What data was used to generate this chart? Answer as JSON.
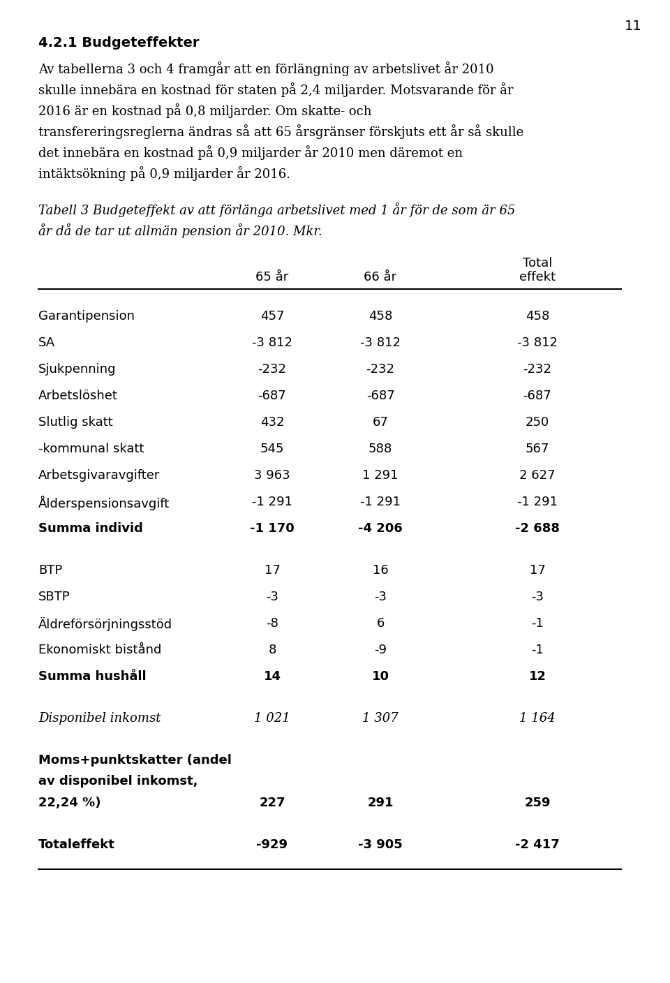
{
  "page_number": "11",
  "heading": "4.2.1 Budgeteffekter",
  "body_text": "Av tabellerna 3 och 4 framgår att en förlängning av arbetslivet år 2010\nskulle innebära en kostnad för staten på 2,4 miljarder. Motsvarande för år\n2016 är en kostnad på 0,8 miljarder. Om skatte- och\ntransfereringsreglerna ändras så att 65 årsgränser förskjuts ett år så skulle\ndet innebära en kostnad på 0,9 miljarder år 2010 men däremot en\nintäktsökning på 0,9 miljarder år 2016.",
  "table_caption_line1": "Tabell 3 Budgeteffekt av att förlänga arbetslivet med 1 år för de som är 65",
  "table_caption_line2": "år då de tar ut allmän pension år 2010. Mkr.",
  "col1_label": "65 år",
  "col2_label": "66 år",
  "col3_label_line1": "Total",
  "col3_label_line2": "effekt",
  "rows": [
    {
      "label": "Garantipension",
      "bold": false,
      "italic": false,
      "values": [
        "457",
        "458",
        "458"
      ],
      "spacer_before": false,
      "multiline_label": false
    },
    {
      "label": "SA",
      "bold": false,
      "italic": false,
      "values": [
        "-3 812",
        "-3 812",
        "-3 812"
      ],
      "spacer_before": false,
      "multiline_label": false
    },
    {
      "label": "Sjukpenning",
      "bold": false,
      "italic": false,
      "values": [
        "-232",
        "-232",
        "-232"
      ],
      "spacer_before": false,
      "multiline_label": false
    },
    {
      "label": "Arbetslöshet",
      "bold": false,
      "italic": false,
      "values": [
        "-687",
        "-687",
        "-687"
      ],
      "spacer_before": false,
      "multiline_label": false
    },
    {
      "label": "Slutlig skatt",
      "bold": false,
      "italic": false,
      "values": [
        "432",
        "67",
        "250"
      ],
      "spacer_before": false,
      "multiline_label": false
    },
    {
      "label": "-kommunal skatt",
      "bold": false,
      "italic": false,
      "values": [
        "545",
        "588",
        "567"
      ],
      "spacer_before": false,
      "multiline_label": false
    },
    {
      "label": "Arbetsgivaravgifter",
      "bold": false,
      "italic": false,
      "values": [
        "3 963",
        "1 291",
        "2 627"
      ],
      "spacer_before": false,
      "multiline_label": false
    },
    {
      "label": "Ålderspensionsavgift",
      "bold": false,
      "italic": false,
      "values": [
        "-1 291",
        "-1 291",
        "-1 291"
      ],
      "spacer_before": false,
      "multiline_label": false
    },
    {
      "label": "Summa individ",
      "bold": true,
      "italic": false,
      "values": [
        "-1 170",
        "-4 206",
        "-2 688"
      ],
      "spacer_before": false,
      "multiline_label": false
    },
    {
      "label": "BTP",
      "bold": false,
      "italic": false,
      "values": [
        "17",
        "16",
        "17"
      ],
      "spacer_before": true,
      "multiline_label": false
    },
    {
      "label": "SBTP",
      "bold": false,
      "italic": false,
      "values": [
        "-3",
        "-3",
        "-3"
      ],
      "spacer_before": false,
      "multiline_label": false
    },
    {
      "label": "Äldreförsörjningsstöd",
      "bold": false,
      "italic": false,
      "values": [
        "-8",
        "6",
        "-1"
      ],
      "spacer_before": false,
      "multiline_label": false
    },
    {
      "label": "Ekonomiskt bistånd",
      "bold": false,
      "italic": false,
      "values": [
        "8",
        "-9",
        "-1"
      ],
      "spacer_before": false,
      "multiline_label": false
    },
    {
      "label": "Summa hushåll",
      "bold": true,
      "italic": false,
      "values": [
        "14",
        "10",
        "12"
      ],
      "spacer_before": false,
      "multiline_label": false
    },
    {
      "label": "Disponibel inkomst",
      "bold": false,
      "italic": true,
      "values": [
        "1 021",
        "1 307",
        "1 164"
      ],
      "spacer_before": true,
      "multiline_label": false
    },
    {
      "label": "Moms+punktskatter (andel",
      "label2": "av disponibel inkomst,",
      "label3": "22,24 %)",
      "bold": true,
      "italic": false,
      "values": [
        "227",
        "291",
        "259"
      ],
      "spacer_before": true,
      "multiline_label": true
    },
    {
      "label": "Totaleffekt",
      "bold": true,
      "italic": false,
      "values": [
        "-929",
        "-3 905",
        "-2 417"
      ],
      "spacer_before": true,
      "multiline_label": false
    }
  ],
  "background_color": "#ffffff",
  "text_color": "#000000"
}
